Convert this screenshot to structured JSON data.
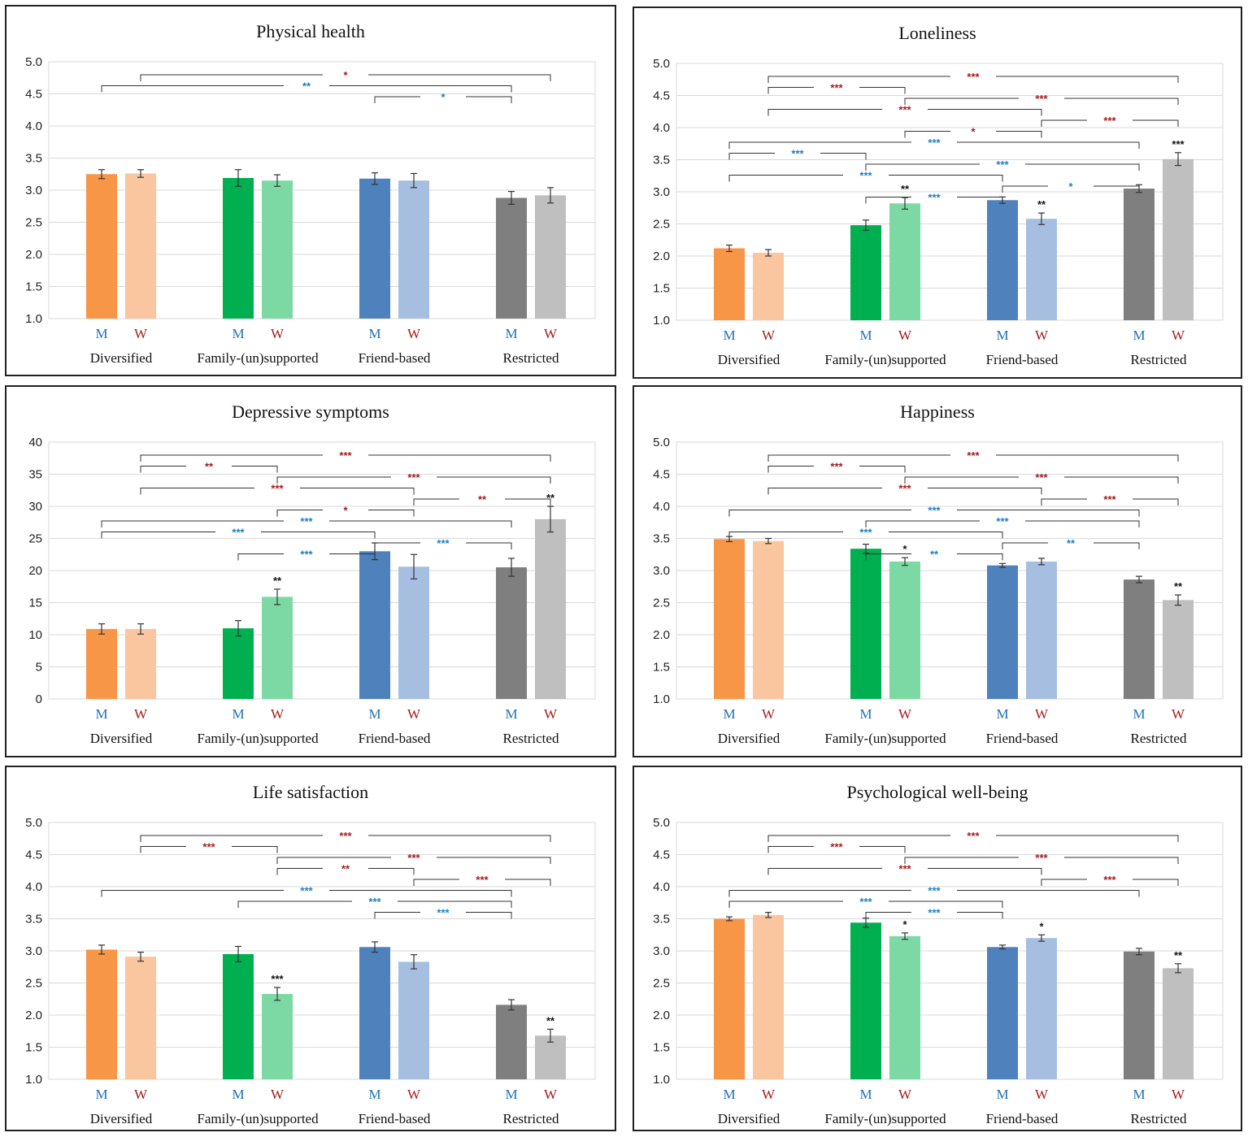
{
  "figure": {
    "groups": [
      "Diversified",
      "Family-(un)supported",
      "Friend-based",
      "Restricted"
    ],
    "gender_labels": [
      "M",
      "W"
    ]
  },
  "colors": {
    "men": [
      "#f79646",
      "#00b050",
      "#4f81bd",
      "#7f7f7f"
    ],
    "women": [
      "#fac6a0",
      "#7dd9a4",
      "#a6bfe0",
      "#bfbfbf"
    ],
    "m_label": "#1f6fb5",
    "w_label": "#a61b1b",
    "women_sig": "#a61b1b",
    "men_sig": "#1f7fc0",
    "sex_sig": "#111111",
    "grid": "#d9d9d9",
    "bracket": "#333333"
  },
  "chart_data": [
    {
      "type": "bar",
      "title": "Physical health",
      "categories": [
        "Diversified",
        "Family-(un)supported",
        "Friend-based",
        "Restricted"
      ],
      "series": [
        {
          "name": "M",
          "values": [
            3.25,
            3.19,
            3.18,
            2.88
          ],
          "errors": [
            0.07,
            0.13,
            0.09,
            0.1
          ]
        },
        {
          "name": "W",
          "values": [
            3.26,
            3.15,
            3.15,
            2.92
          ],
          "errors": [
            0.06,
            0.09,
            0.11,
            0.12
          ]
        }
      ],
      "ylim": [
        1.0,
        5.0
      ],
      "yticks": [
        "1.0",
        "1.5",
        "2.0",
        "2.5",
        "3.0",
        "3.5",
        "4.0",
        "4.5",
        "5.0"
      ],
      "sex_diff": [
        "",
        "",
        "",
        "",
        "",
        "",
        "",
        ""
      ],
      "comparisons": [
        {
          "between": [
            "Diversified W",
            "Restricted W"
          ],
          "label": "*"
        },
        {
          "between": [
            "Diversified M",
            "Restricted M"
          ],
          "label": "**"
        },
        {
          "between": [
            "Friend-based M",
            "Restricted M"
          ],
          "label": "*"
        }
      ]
    },
    {
      "type": "bar",
      "title": "Loneliness",
      "categories": [
        "Diversified",
        "Family-(un)supported",
        "Friend-based",
        "Restricted"
      ],
      "series": [
        {
          "name": "M",
          "values": [
            2.12,
            2.48,
            2.87,
            3.05
          ],
          "errors": [
            0.05,
            0.08,
            0.05,
            0.06
          ]
        },
        {
          "name": "W",
          "values": [
            2.05,
            2.82,
            2.58,
            3.51
          ],
          "errors": [
            0.05,
            0.09,
            0.09,
            0.1
          ]
        }
      ],
      "ylim": [
        1.0,
        5.0
      ],
      "yticks": [
        "1.0",
        "1.5",
        "2.0",
        "2.5",
        "3.0",
        "3.5",
        "4.0",
        "4.5",
        "5.0"
      ],
      "sex_diff": [
        "",
        "",
        "",
        "**",
        "",
        "**",
        "",
        "***"
      ],
      "comparisons": [
        {
          "between": [
            "Diversified W",
            "Restricted W"
          ],
          "label": "***"
        },
        {
          "between": [
            "Diversified W",
            "Family-(un)supported W"
          ],
          "label": "***"
        },
        {
          "between": [
            "Family-(un)supported W",
            "Restricted W"
          ],
          "label": "***"
        },
        {
          "between": [
            "Diversified W",
            "Friend-based W"
          ],
          "label": "***"
        },
        {
          "between": [
            "Friend-based W",
            "Restricted W"
          ],
          "label": "***"
        },
        {
          "between": [
            "Family-(un)supported W",
            "Friend-based W"
          ],
          "label": "*"
        },
        {
          "between": [
            "Diversified M",
            "Restricted M"
          ],
          "label": "***"
        },
        {
          "between": [
            "Diversified M",
            "Family-(un)supported M"
          ],
          "label": "***"
        },
        {
          "between": [
            "Family-(un)supported M",
            "Restricted M"
          ],
          "label": "***"
        },
        {
          "between": [
            "Diversified M",
            "Friend-based M"
          ],
          "label": "***"
        },
        {
          "between": [
            "Friend-based M",
            "Restricted M"
          ],
          "label": "*"
        },
        {
          "between": [
            "Family-(un)supported M",
            "Friend-based M"
          ],
          "label": "***"
        }
      ]
    },
    {
      "type": "bar",
      "title": "Depressive symptoms",
      "categories": [
        "Diversified",
        "Family-(un)supported",
        "Friend-based",
        "Restricted"
      ],
      "series": [
        {
          "name": "M",
          "values": [
            10.9,
            11.0,
            23.0,
            20.5
          ],
          "errors": [
            0.8,
            1.2,
            1.3,
            1.4
          ]
        },
        {
          "name": "W",
          "values": [
            10.9,
            15.9,
            20.6,
            28.0
          ],
          "errors": [
            0.8,
            1.2,
            1.9,
            2.0
          ]
        }
      ],
      "ylim": [
        0,
        40
      ],
      "yticks": [
        "0",
        "5",
        "10",
        "15",
        "20",
        "25",
        "30",
        "35",
        "40"
      ],
      "sex_diff": [
        "",
        "",
        "",
        "**",
        "",
        "",
        "",
        "**"
      ],
      "comparisons": [
        {
          "between": [
            "Diversified W",
            "Restricted W"
          ],
          "label": "***"
        },
        {
          "between": [
            "Diversified W",
            "Family-(un)supported W"
          ],
          "label": "**"
        },
        {
          "between": [
            "Family-(un)supported W",
            "Restricted W"
          ],
          "label": "***"
        },
        {
          "between": [
            "Diversified W",
            "Friend-based W"
          ],
          "label": "***"
        },
        {
          "between": [
            "Friend-based W",
            "Restricted W"
          ],
          "label": "**"
        },
        {
          "between": [
            "Family-(un)supported W",
            "Friend-based W"
          ],
          "label": "*"
        },
        {
          "between": [
            "Diversified M",
            "Restricted M"
          ],
          "label": "***"
        },
        {
          "between": [
            "Diversified M",
            "Friend-based M"
          ],
          "label": "***"
        },
        {
          "between": [
            "Friend-based M",
            "Restricted M"
          ],
          "label": "***"
        },
        {
          "between": [
            "Family-(un)supported M",
            "Friend-based M"
          ],
          "label": "***"
        }
      ]
    },
    {
      "type": "bar",
      "title": "Happiness",
      "categories": [
        "Diversified",
        "Family-(un)supported",
        "Friend-based",
        "Restricted"
      ],
      "series": [
        {
          "name": "M",
          "values": [
            3.49,
            3.34,
            3.08,
            2.86
          ],
          "errors": [
            0.04,
            0.07,
            0.03,
            0.05
          ]
        },
        {
          "name": "W",
          "values": [
            3.46,
            3.14,
            3.14,
            2.54
          ],
          "errors": [
            0.04,
            0.06,
            0.05,
            0.08
          ]
        }
      ],
      "ylim": [
        1.0,
        5.0
      ],
      "yticks": [
        "1.0",
        "1.5",
        "2.0",
        "2.5",
        "3.0",
        "3.5",
        "4.0",
        "4.5",
        "5.0"
      ],
      "sex_diff": [
        "",
        "",
        "",
        "*",
        "",
        "",
        "",
        "**"
      ],
      "comparisons": [
        {
          "between": [
            "Diversified W",
            "Restricted W"
          ],
          "label": "***"
        },
        {
          "between": [
            "Diversified W",
            "Family-(un)supported W"
          ],
          "label": "***"
        },
        {
          "between": [
            "Family-(un)supported W",
            "Restricted W"
          ],
          "label": "***"
        },
        {
          "between": [
            "Diversified W",
            "Friend-based W"
          ],
          "label": "***"
        },
        {
          "between": [
            "Friend-based W",
            "Restricted W"
          ],
          "label": "***"
        },
        {
          "between": [
            "Diversified M",
            "Restricted M"
          ],
          "label": "***"
        },
        {
          "between": [
            "Family-(un)supported M",
            "Restricted M"
          ],
          "label": "***"
        },
        {
          "between": [
            "Diversified M",
            "Friend-based M"
          ],
          "label": "***"
        },
        {
          "between": [
            "Friend-based M",
            "Restricted M"
          ],
          "label": "**"
        },
        {
          "between": [
            "Family-(un)supported M",
            "Friend-based M"
          ],
          "label": "**"
        }
      ]
    },
    {
      "type": "bar",
      "title": "Life satisfaction",
      "categories": [
        "Diversified",
        "Family-(un)supported",
        "Friend-based",
        "Restricted"
      ],
      "series": [
        {
          "name": "M",
          "values": [
            3.02,
            2.95,
            3.06,
            2.16
          ],
          "errors": [
            0.07,
            0.12,
            0.08,
            0.08
          ]
        },
        {
          "name": "W",
          "values": [
            2.91,
            2.33,
            2.83,
            1.68
          ],
          "errors": [
            0.07,
            0.1,
            0.11,
            0.1
          ]
        }
      ],
      "ylim": [
        1.0,
        5.0
      ],
      "yticks": [
        "1.0",
        "1.5",
        "2.0",
        "2.5",
        "3.0",
        "3.5",
        "4.0",
        "4.5",
        "5.0"
      ],
      "sex_diff": [
        "",
        "",
        "",
        "***",
        "",
        "",
        "",
        "**"
      ],
      "comparisons": [
        {
          "between": [
            "Diversified W",
            "Restricted W"
          ],
          "label": "***"
        },
        {
          "between": [
            "Diversified W",
            "Family-(un)supported W"
          ],
          "label": "***"
        },
        {
          "between": [
            "Family-(un)supported W",
            "Restricted W"
          ],
          "label": "***"
        },
        {
          "between": [
            "Family-(un)supported W",
            "Friend-based W"
          ],
          "label": "**"
        },
        {
          "between": [
            "Friend-based W",
            "Restricted W"
          ],
          "label": "***"
        },
        {
          "between": [
            "Diversified M",
            "Restricted M"
          ],
          "label": "***"
        },
        {
          "between": [
            "Family-(un)supported M",
            "Restricted M"
          ],
          "label": "***"
        },
        {
          "between": [
            "Friend-based M",
            "Restricted M"
          ],
          "label": "***"
        }
      ]
    },
    {
      "type": "bar",
      "title": "Psychological well-being",
      "categories": [
        "Diversified",
        "Family-(un)supported",
        "Friend-based",
        "Restricted"
      ],
      "series": [
        {
          "name": "M",
          "values": [
            3.5,
            3.44,
            3.06,
            2.99
          ],
          "errors": [
            0.03,
            0.07,
            0.03,
            0.05
          ]
        },
        {
          "name": "W",
          "values": [
            3.56,
            3.23,
            3.2,
            2.73
          ],
          "errors": [
            0.04,
            0.05,
            0.05,
            0.07
          ]
        }
      ],
      "ylim": [
        1.0,
        5.0
      ],
      "yticks": [
        "1.0",
        "1.5",
        "2.0",
        "2.5",
        "3.0",
        "3.5",
        "4.0",
        "4.5",
        "5.0"
      ],
      "sex_diff": [
        "",
        "",
        "",
        "*",
        "",
        "*",
        "",
        "**"
      ],
      "comparisons": [
        {
          "between": [
            "Diversified W",
            "Restricted W"
          ],
          "label": "***"
        },
        {
          "between": [
            "Diversified W",
            "Family-(un)supported W"
          ],
          "label": "***"
        },
        {
          "between": [
            "Family-(un)supported W",
            "Restricted W"
          ],
          "label": "***"
        },
        {
          "between": [
            "Diversified W",
            "Friend-based W"
          ],
          "label": "***"
        },
        {
          "between": [
            "Friend-based W",
            "Restricted W"
          ],
          "label": "***"
        },
        {
          "between": [
            "Diversified M",
            "Restricted M"
          ],
          "label": "***"
        },
        {
          "between": [
            "Diversified M",
            "Friend-based M"
          ],
          "label": "***"
        },
        {
          "between": [
            "Family-(un)supported M",
            "Friend-based M"
          ],
          "label": "***"
        }
      ]
    }
  ]
}
